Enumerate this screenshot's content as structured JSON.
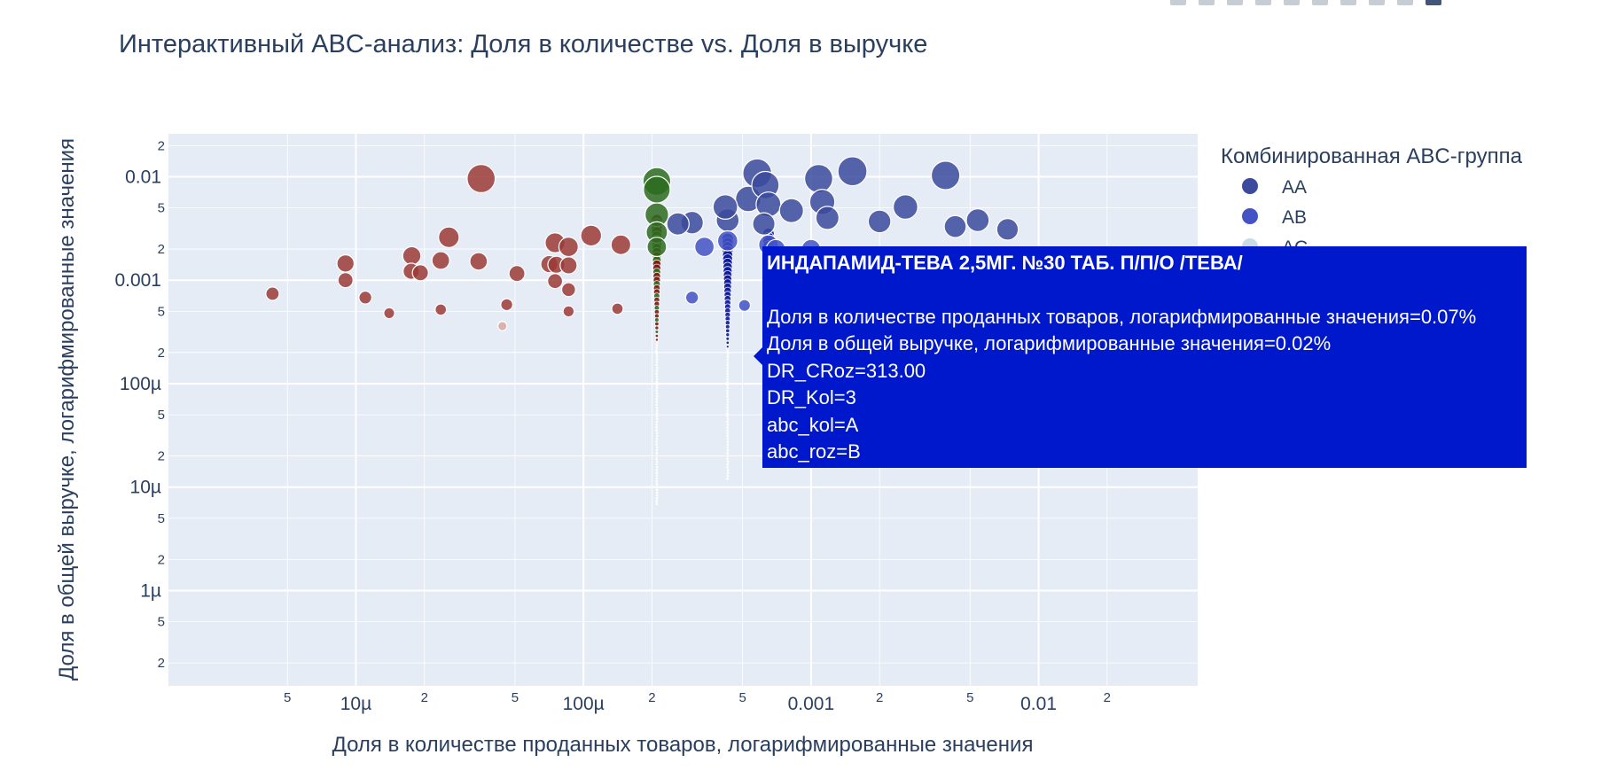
{
  "chart_data": {
    "type": "scatter",
    "title": "Интерактивный ABC-анализ: Доля в количестве vs. Доля в выручке",
    "xlabel": "Доля в количестве проданных товаров, логарифмированные значения",
    "ylabel": "Доля в общей выручке, логарифмированные значения",
    "x_scale": "log",
    "y_scale": "log",
    "xlim": [
      1.5e-06,
      0.05
    ],
    "ylim": [
      1.2e-07,
      0.026
    ],
    "grid": true,
    "x_major_ticks": [
      {
        "value": 1e-05,
        "label": "10µ"
      },
      {
        "value": 0.0001,
        "label": "100µ"
      },
      {
        "value": 0.001,
        "label": "0.001"
      },
      {
        "value": 0.01,
        "label": "0.01"
      }
    ],
    "x_minor_ticks": [
      {
        "value": 5e-06,
        "label": "5"
      },
      {
        "value": 2e-05,
        "label": "2"
      },
      {
        "value": 5e-05,
        "label": "5"
      },
      {
        "value": 0.0002,
        "label": "2"
      },
      {
        "value": 0.0005,
        "label": "5"
      },
      {
        "value": 0.002,
        "label": "2"
      },
      {
        "value": 0.005,
        "label": "5"
      },
      {
        "value": 0.02,
        "label": "2"
      }
    ],
    "y_major_ticks": [
      {
        "value": 1e-06,
        "label": "1µ"
      },
      {
        "value": 1e-05,
        "label": "10µ"
      },
      {
        "value": 0.0001,
        "label": "100µ"
      },
      {
        "value": 0.001,
        "label": "0.001"
      },
      {
        "value": 0.01,
        "label": "0.01"
      }
    ],
    "y_minor_ticks": [
      {
        "value": 2e-07,
        "label": "2"
      },
      {
        "value": 5e-07,
        "label": "5"
      },
      {
        "value": 2e-06,
        "label": "2"
      },
      {
        "value": 5e-06,
        "label": "5"
      },
      {
        "value": 2e-05,
        "label": "2"
      },
      {
        "value": 5e-05,
        "label": "5"
      },
      {
        "value": 0.0002,
        "label": "2"
      },
      {
        "value": 0.0005,
        "label": "5"
      },
      {
        "value": 0.002,
        "label": "2"
      },
      {
        "value": 0.005,
        "label": "5"
      },
      {
        "value": 0.02,
        "label": "2"
      }
    ],
    "legend": {
      "title": "Комбинированная ABC-группа",
      "placement": "right",
      "items": [
        {
          "name": "AA",
          "color": "#3b4a9c"
        },
        {
          "name": "AB",
          "color": "#4352c4"
        },
        {
          "name": "AC",
          "color": "#c9dbe4"
        }
      ]
    },
    "series": [
      {
        "name": "AA",
        "color": "#3b4a9c",
        "points": [
          [
            0.00043,
            0.0038
          ],
          [
            0.00053,
            0.0061
          ],
          [
            0.00058,
            0.0108
          ],
          [
            0.00063,
            0.0083
          ],
          [
            0.00065,
            0.0054
          ],
          [
            0.00082,
            0.0047
          ],
          [
            0.00108,
            0.0096
          ],
          [
            0.00112,
            0.0057
          ],
          [
            0.00118,
            0.004
          ],
          [
            0.00152,
            0.0113
          ],
          [
            0.002,
            0.0037
          ],
          [
            0.0026,
            0.0051
          ],
          [
            0.0039,
            0.0103
          ],
          [
            0.0043,
            0.0033
          ],
          [
            0.0054,
            0.0038
          ],
          [
            0.0073,
            0.0031
          ],
          [
            0.00042,
            0.0051
          ],
          [
            0.0003,
            0.0036
          ],
          [
            0.00026,
            0.0035
          ],
          [
            0.00062,
            0.0035
          ]
        ]
      },
      {
        "name": "AB",
        "color": "#4352c4",
        "points": [
          [
            0.00034,
            0.0021
          ],
          [
            0.00043,
            0.0024
          ],
          [
            0.00065,
            0.0022
          ],
          [
            0.0007,
            0.002
          ],
          [
            0.00077,
            0.00115
          ],
          [
            0.001,
            0.002
          ],
          [
            0.0003,
            0.00068
          ],
          [
            0.00051,
            0.00057
          ]
        ]
      },
      {
        "name": "green",
        "color": "#2d6b1f",
        "points": [
          [
            0.00021,
            0.009
          ],
          [
            0.00021,
            0.0075
          ],
          [
            0.00021,
            0.0043
          ],
          [
            0.00021,
            0.0029
          ],
          [
            0.00021,
            0.0021
          ]
        ]
      },
      {
        "name": "red",
        "color": "#9b3b36",
        "points": [
          [
            3.55e-05,
            0.0096
          ],
          [
            2.56e-05,
            0.0026
          ],
          [
            7.5e-05,
            0.0023
          ],
          [
            0.000108,
            0.0027
          ],
          [
            0.000146,
            0.0022
          ],
          [
            8.6e-05,
            0.0021
          ],
          [
            1.76e-05,
            0.00172
          ],
          [
            2.36e-05,
            0.00155
          ],
          [
            9e-06,
            0.00145
          ],
          [
            3.46e-05,
            0.00152
          ],
          [
            7.08e-05,
            0.00143
          ],
          [
            7.6e-05,
            0.00141
          ],
          [
            8.6e-05,
            0.00139
          ],
          [
            5.1e-05,
            0.00116
          ],
          [
            1.75e-05,
            0.00122
          ],
          [
            1.92e-05,
            0.00118
          ],
          [
            9e-06,
            0.001
          ],
          [
            7.5e-05,
            0.00098
          ],
          [
            8.6e-05,
            0.00081
          ],
          [
            1.1e-05,
            0.00068
          ],
          [
            4.3e-06,
            0.00074
          ],
          [
            4.6e-05,
            0.00058
          ],
          [
            1.4e-05,
            0.00048
          ],
          [
            2.36e-05,
            0.00052
          ],
          [
            8.6e-05,
            0.0005
          ],
          [
            0.000141,
            0.00053
          ]
        ]
      },
      {
        "name": "pale",
        "color": "#d7a9a3",
        "points": [
          [
            4.4e-05,
            0.00036
          ]
        ]
      }
    ],
    "columns": [
      {
        "x": 0.00021,
        "colors": [
          "#7d1a12",
          "#2d6b1f",
          "#7d1a12"
        ],
        "top": 0.0038,
        "dense_bottom": 0.00025,
        "white_bottom": 6.5e-06
      },
      {
        "x": 0.00043,
        "colors": [
          "#0d1a9a"
        ],
        "top": 0.0025,
        "dense_bottom": 0.00022,
        "white_bottom": 1.2e-05
      },
      {
        "x": 0.00065,
        "colors": [
          "#0d1a9a"
        ],
        "top": 0.0028,
        "dense_bottom": 0.00022,
        "white_bottom": 1.8e-05
      }
    ],
    "tooltip": {
      "title": "ИНДАПАМИД-ТЕВА 2,5МГ. №30 ТАБ. П/П/О /ТЕВА/",
      "lines": [
        "Доля в количестве проданных товаров, логарифмированные значения=0.07%",
        "Доля в общей выручке, логарифмированные значения=0.02%",
        "DR_CRoz=313.00",
        "DR_Kol=3",
        "abc_kol=A",
        "abc_roz=B"
      ],
      "bg_color": "#0018cc"
    }
  }
}
